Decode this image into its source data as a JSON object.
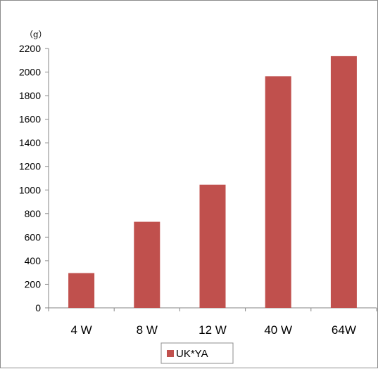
{
  "chart_data": {
    "type": "bar",
    "unit_label": "（g）",
    "categories": [
      "4 W",
      "8 W",
      "12 W",
      "40 W",
      "64W"
    ],
    "series": [
      {
        "name": "UK*YA",
        "values": [
          295,
          730,
          1045,
          1965,
          2135
        ],
        "color": "#c0504d"
      }
    ],
    "ylim": [
      0,
      2200
    ],
    "yticks": [
      0,
      200,
      400,
      600,
      800,
      1000,
      1200,
      1400,
      1600,
      1800,
      2000,
      2200
    ],
    "grid": false,
    "legend_position": "bottom"
  }
}
